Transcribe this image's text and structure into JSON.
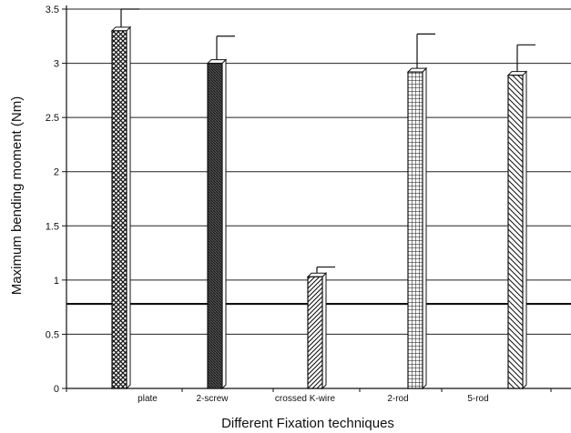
{
  "chart_data": {
    "type": "bar",
    "title": "",
    "xlabel": "Different Fixation techniques",
    "ylabel": "Maximum bending moment (Nm)",
    "ylim": [
      0,
      3.5
    ],
    "yticks": [
      "0",
      "0.5",
      "1",
      "1.5",
      "2",
      "2.5",
      "3",
      "3.5"
    ],
    "grid": true,
    "categories": [
      "plate",
      "2-screw",
      "crossed K-wire",
      "2-rod",
      "5-rod"
    ],
    "values": [
      3.3,
      3.0,
      1.03,
      2.92,
      2.89
    ],
    "error_plus": [
      0.2,
      0.25,
      0.09,
      0.35,
      0.28
    ],
    "reference_line": 0.78,
    "colors": {
      "bar_fill": "#ffffff",
      "bar_stroke": "#111111",
      "dark_fill": "#444444",
      "grid": "#222222"
    }
  }
}
